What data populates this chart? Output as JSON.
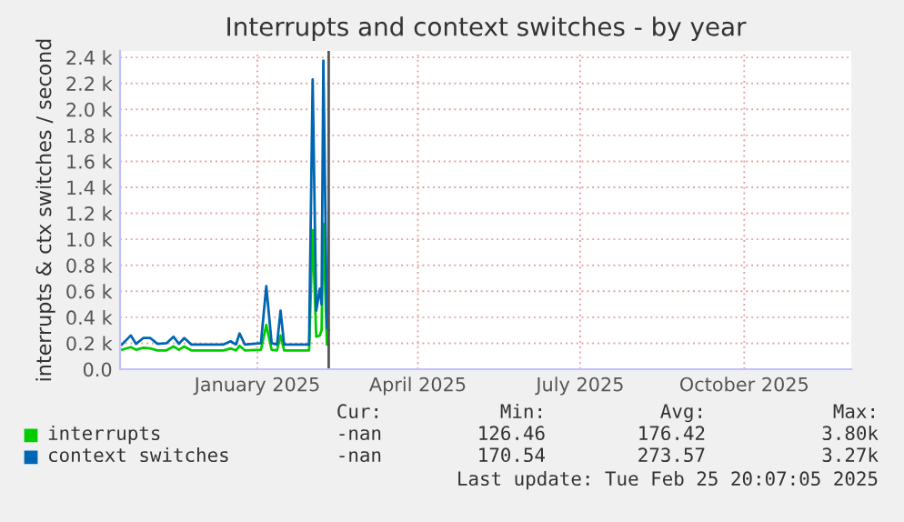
{
  "chart_data": {
    "type": "line",
    "title": "Interrupts and context switches - by year",
    "ylabel": "interrupts & ctx switches / second",
    "x": [
      "2024-11-01",
      "2024-11-06",
      "2024-11-09",
      "2024-11-13",
      "2024-11-17",
      "2024-11-21",
      "2024-11-26",
      "2024-11-30",
      "2024-12-03",
      "2024-12-06",
      "2024-12-10",
      "2024-12-28",
      "2025-01-01",
      "2025-01-04",
      "2025-01-06",
      "2025-01-09",
      "2025-01-18",
      "2025-01-21",
      "2025-01-24",
      "2025-01-27",
      "2025-01-29",
      "2025-01-31",
      "2025-02-14",
      "2025-02-16",
      "2025-02-18",
      "2025-02-20",
      "2025-02-21",
      "2025-02-22",
      "2025-02-24",
      "2025-02-25"
    ],
    "series": [
      {
        "name": "interrupts",
        "color": "#00cc00",
        "values": [
          150,
          170,
          150,
          165,
          160,
          145,
          145,
          175,
          150,
          175,
          145,
          145,
          160,
          145,
          180,
          145,
          150,
          340,
          150,
          145,
          260,
          145,
          145,
          1070,
          250,
          260,
          300,
          1120,
          190,
          190
        ]
      },
      {
        "name": "context switches",
        "color": "#0066b3",
        "values": [
          190,
          260,
          195,
          240,
          240,
          195,
          200,
          250,
          195,
          240,
          190,
          190,
          215,
          190,
          275,
          190,
          200,
          640,
          200,
          190,
          450,
          190,
          190,
          2230,
          450,
          620,
          500,
          2375,
          320,
          300
        ]
      }
    ],
    "xlim": [
      "2024-10-31",
      "2025-12-15"
    ],
    "xticks": [
      {
        "value": "2025-01-16",
        "label": "January 2025"
      },
      {
        "value": "2025-04-16",
        "label": "April 2025"
      },
      {
        "value": "2025-07-16",
        "label": "July 2025"
      },
      {
        "value": "2025-10-16",
        "label": "October 2025"
      }
    ],
    "ylim": [
      0,
      2450
    ],
    "yticks": [
      {
        "value": 0,
        "label": "0.0"
      },
      {
        "value": 200,
        "label": "0.2 k"
      },
      {
        "value": 400,
        "label": "0.4 k"
      },
      {
        "value": 600,
        "label": "0.6 k"
      },
      {
        "value": 800,
        "label": "0.8 k"
      },
      {
        "value": 1000,
        "label": "1.0 k"
      },
      {
        "value": 1200,
        "label": "1.2 k"
      },
      {
        "value": 1400,
        "label": "1.4 k"
      },
      {
        "value": 1600,
        "label": "1.6 k"
      },
      {
        "value": 1800,
        "label": "1.8 k"
      },
      {
        "value": 2000,
        "label": "2.0 k"
      },
      {
        "value": 2200,
        "label": "2.2 k"
      },
      {
        "value": 2400,
        "label": "2.4 k"
      }
    ],
    "ref_lines": [
      {
        "axis": "x",
        "value": "2025-02-25",
        "color": "#555555"
      }
    ],
    "grid": true,
    "legend": "bottom",
    "line_style": "solid",
    "marker": "none",
    "annotations": [
      "Cur:",
      "Min:",
      "Avg:",
      "Max:",
      "-nan",
      "126.46",
      "176.42",
      "3.80k",
      "-nan",
      "170.54",
      "273.57",
      "3.27k",
      "Last update: Tue Feb 25 20:07:05 2025"
    ]
  }
}
